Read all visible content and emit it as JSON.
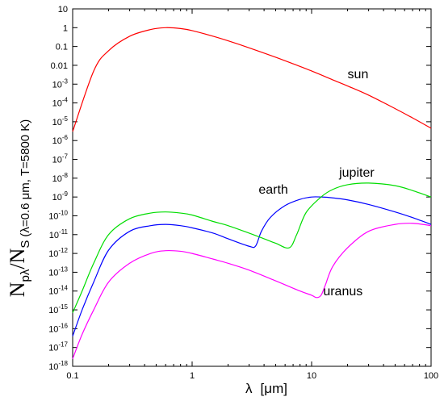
{
  "chart_data": {
    "type": "line",
    "x_scale": "log",
    "y_scale": "log",
    "xlim": [
      0.1,
      100
    ],
    "ylim": [
      1e-18,
      10
    ],
    "grid": false,
    "xlabel": {
      "symbol": "λ",
      "unit": "[μm]"
    },
    "ylabel": {
      "main": "N",
      "main_sub": "pλ",
      "slash": "/N",
      "denom_sub": "S",
      "condition": "(λ=0.6 μm, T=5800 K)"
    },
    "x_ticks": [
      {
        "value": 0.1,
        "label": "0.1"
      },
      {
        "value": 1,
        "label": "1"
      },
      {
        "value": 10,
        "label": "10"
      },
      {
        "value": 100,
        "label": "100"
      }
    ],
    "y_ticks": [
      {
        "exp": 1,
        "label": "10"
      },
      {
        "exp": 0,
        "label": "1"
      },
      {
        "exp": -1,
        "label": "0.1"
      },
      {
        "exp": -2,
        "label": "0.01"
      },
      {
        "exp": -3,
        "base": "10",
        "power": "-3"
      },
      {
        "exp": -4,
        "base": "10",
        "power": "-4"
      },
      {
        "exp": -5,
        "base": "10",
        "power": "-5"
      },
      {
        "exp": -6,
        "base": "10",
        "power": "-6"
      },
      {
        "exp": -7,
        "base": "10",
        "power": "-7"
      },
      {
        "exp": -8,
        "base": "10",
        "power": "-8"
      },
      {
        "exp": -9,
        "base": "10",
        "power": "-9"
      },
      {
        "exp": -10,
        "base": "10",
        "power": "-10"
      },
      {
        "exp": -11,
        "base": "10",
        "power": "-11"
      },
      {
        "exp": -12,
        "base": "10",
        "power": "-12"
      },
      {
        "exp": -13,
        "base": "10",
        "power": "-13"
      },
      {
        "exp": -14,
        "base": "10",
        "power": "-14"
      },
      {
        "exp": -15,
        "base": "10",
        "power": "-15"
      },
      {
        "exp": -16,
        "base": "10",
        "power": "-16"
      },
      {
        "exp": -17,
        "base": "10",
        "power": "-17"
      },
      {
        "exp": -18,
        "base": "10",
        "power": "-18"
      }
    ],
    "series": [
      {
        "name": "sun",
        "color": "#ff0000",
        "label_at": {
          "x": 20,
          "y": 0.002
        },
        "x": [
          0.1,
          0.15,
          0.2,
          0.3,
          0.45,
          0.6,
          0.8,
          1.0,
          1.5,
          2,
          3,
          5,
          7,
          10,
          15,
          20,
          30,
          50,
          70,
          100
        ],
        "y": [
          3e-06,
          0.005,
          0.06,
          0.35,
          0.8,
          1.0,
          0.9,
          0.7,
          0.35,
          0.2,
          0.085,
          0.027,
          0.012,
          0.005,
          0.0017,
          0.0008,
          0.00026,
          5e-05,
          1.6e-05,
          4.5e-06
        ]
      },
      {
        "name": "earth",
        "color": "#0000ff",
        "label_at": {
          "x": 3.6,
          "y": 1.5e-09
        },
        "x": [
          0.1,
          0.12,
          0.15,
          0.2,
          0.3,
          0.45,
          0.6,
          0.8,
          1.0,
          1.5,
          2,
          3,
          3.4,
          3.8,
          4.5,
          6,
          8,
          10,
          12,
          15,
          20,
          30,
          50,
          70,
          100
        ],
        "y": [
          4e-17,
          1e-15,
          3e-14,
          1.5e-12,
          1.5e-11,
          3e-11,
          3.5e-11,
          3e-11,
          2.3e-11,
          1.2e-11,
          6e-12,
          2.4e-12,
          2.5e-12,
          1.5e-11,
          8e-11,
          3.5e-10,
          7.5e-10,
          1e-09,
          1e-09,
          9e-10,
          7e-10,
          4e-10,
          1.6e-10,
          8e-11,
          3.5e-11
        ]
      },
      {
        "name": "jupiter",
        "color": "#00dd00",
        "label_at": {
          "x": 17,
          "y": 1.2e-08
        },
        "x": [
          0.1,
          0.12,
          0.15,
          0.2,
          0.3,
          0.45,
          0.6,
          0.8,
          1.0,
          1.5,
          2,
          3,
          4,
          5,
          6.5,
          7.5,
          9,
          12,
          15,
          20,
          30,
          50,
          70,
          100
        ],
        "y": [
          7e-16,
          1e-14,
          3e-13,
          1e-11,
          7e-11,
          1.4e-10,
          1.6e-10,
          1.4e-10,
          1.1e-10,
          5e-11,
          3e-11,
          1.2e-11,
          6e-12,
          3.5e-12,
          2e-12,
          1e-11,
          1.5e-10,
          1e-09,
          2.5e-09,
          4.5e-09,
          5.5e-09,
          4e-09,
          2.2e-09,
          1e-09
        ]
      },
      {
        "name": "uranus",
        "color": "#ff00ff",
        "label_at": {
          "x": 12.5,
          "y": 6e-15
        },
        "x": [
          0.1,
          0.12,
          0.15,
          0.2,
          0.3,
          0.45,
          0.6,
          0.8,
          1.0,
          1.5,
          2,
          3,
          5,
          8,
          10,
          11,
          12,
          13,
          15,
          20,
          30,
          50,
          70,
          100
        ],
        "y": [
          2.5e-18,
          5e-17,
          1e-15,
          3e-14,
          3e-13,
          1e-12,
          1.4e-12,
          1.3e-12,
          1e-12,
          5e-13,
          3e-13,
          1.3e-13,
          3.5e-14,
          1e-14,
          6e-15,
          4.5e-15,
          6e-15,
          2e-14,
          2e-13,
          2e-12,
          1.5e-11,
          3.5e-11,
          4e-11,
          3e-11
        ]
      }
    ]
  }
}
